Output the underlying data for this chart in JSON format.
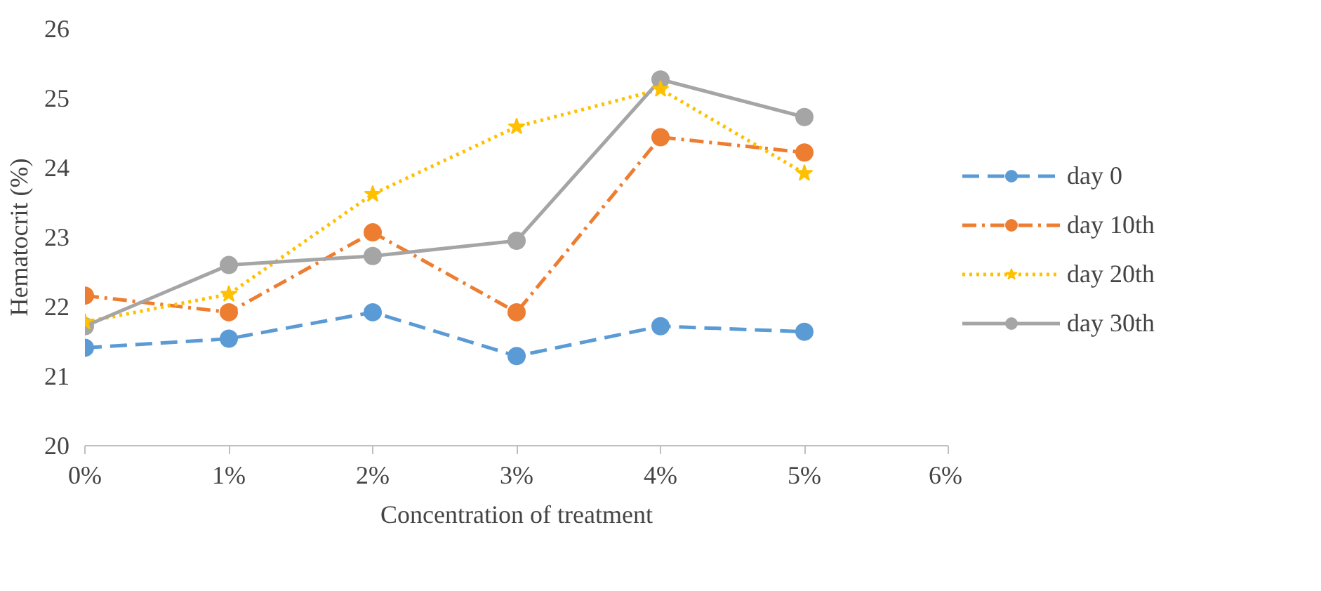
{
  "chart_data": {
    "type": "line",
    "xlabel": "Concentration of treatment",
    "ylabel": "Hematocrit (%)",
    "x": [
      0,
      1,
      2,
      3,
      4,
      5
    ],
    "xlim": [
      0,
      6
    ],
    "ylim": [
      20,
      26
    ],
    "xticks": [
      {
        "value": 0,
        "label": "0%"
      },
      {
        "value": 1,
        "label": "1%"
      },
      {
        "value": 2,
        "label": "2%"
      },
      {
        "value": 3,
        "label": "3%"
      },
      {
        "value": 4,
        "label": "4%"
      },
      {
        "value": 5,
        "label": "5%"
      },
      {
        "value": 6,
        "label": "6%"
      }
    ],
    "yticks": [
      20,
      21,
      22,
      23,
      24,
      25,
      26
    ],
    "grid": false,
    "legend": "right",
    "series": [
      {
        "name": "day 0",
        "color": "#5b9bd5",
        "line_style": "dashed",
        "marker": "circle",
        "values": [
          21.41,
          21.54,
          21.92,
          21.29,
          21.72,
          21.64
        ]
      },
      {
        "name": "day 10th",
        "color": "#ed7d31",
        "line_style": "dashdot",
        "marker": "circle",
        "values": [
          22.16,
          21.92,
          23.07,
          21.92,
          24.44,
          24.22
        ]
      },
      {
        "name": "day 20th",
        "color": "#ffc000",
        "line_style": "dotted",
        "marker": "star",
        "values": [
          21.78,
          22.18,
          23.62,
          24.59,
          25.13,
          23.92
        ]
      },
      {
        "name": "day 30th",
        "color": "#a5a5a5",
        "line_style": "solid",
        "marker": "circle",
        "values": [
          21.72,
          22.6,
          22.73,
          22.95,
          25.27,
          24.73
        ]
      }
    ]
  }
}
